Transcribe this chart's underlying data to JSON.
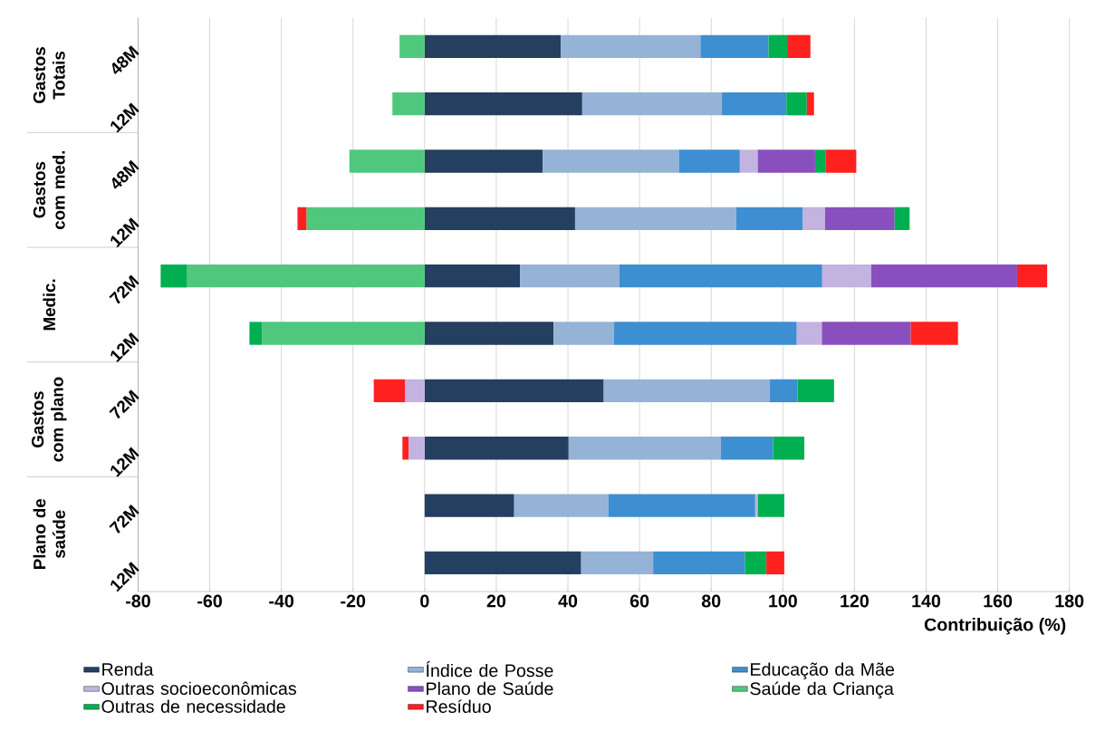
{
  "chart_data": {
    "type": "bar",
    "orientation": "horizontal",
    "stacked": true,
    "categories": [
      "48M",
      "12M",
      "48M",
      "12M",
      "72M",
      "12M",
      "72M",
      "12M",
      "72M",
      "12M"
    ],
    "series": [
      {
        "name": "Renda",
        "color": "#243f60",
        "values": [
          38,
          44,
          33,
          42,
          26.6,
          36,
          50,
          40.2,
          25,
          43.7
        ]
      },
      {
        "name": "Índice de Posse",
        "color": "#95b3d7",
        "values": [
          39,
          39,
          38,
          45,
          27.8,
          16.9,
          46.4,
          42.5,
          26.3,
          20.1
        ]
      },
      {
        "name": "Educação da Mãe",
        "color": "#3d8fd1",
        "values": [
          19,
          18,
          17,
          18.6,
          56.6,
          51,
          7.7,
          14.6,
          41,
          25.6
        ]
      },
      {
        "name": "Outras socioeconômicas",
        "color": "#c2b3e0",
        "values": [
          null,
          null,
          5,
          6.2,
          13.7,
          7,
          -5.5,
          -4.5,
          0.7,
          null
        ]
      },
      {
        "name": "Plano de Saúde",
        "color": "#8a4fbf",
        "values": [
          null,
          null,
          16,
          19.4,
          40.7,
          24.8,
          null,
          null,
          null,
          null
        ]
      },
      {
        "name": "Saúde da Criança",
        "color": "#4fc87e",
        "values": [
          -7,
          -9,
          -21,
          -33,
          -66.3,
          -45.4,
          null,
          null,
          null,
          null
        ]
      },
      {
        "name": "Outras de necessidade",
        "color": "#00b050",
        "values": [
          5.2,
          5.7,
          3,
          4.2,
          -7.4,
          -3.5,
          10.2,
          8.7,
          7.4,
          6
        ]
      },
      {
        "name": "Resíduo",
        "color": "#ff2020",
        "values": [
          6.5,
          2,
          8.5,
          -2.5,
          8.4,
          13.2,
          -8.7,
          -1.7,
          null,
          5
        ]
      }
    ],
    "xlim": [
      -80,
      180
    ],
    "xticks": [
      -80,
      -60,
      -40,
      -20,
      0,
      20,
      40,
      60,
      80,
      100,
      120,
      140,
      160,
      180
    ],
    "xlabel": "Contribuição (%)",
    "grid": "x",
    "legend": "bottom",
    "annotations": [
      "Gastos Totais",
      "Gastos com med.",
      "Medic.",
      "Gastos com plano",
      "Plano de saúde"
    ]
  }
}
